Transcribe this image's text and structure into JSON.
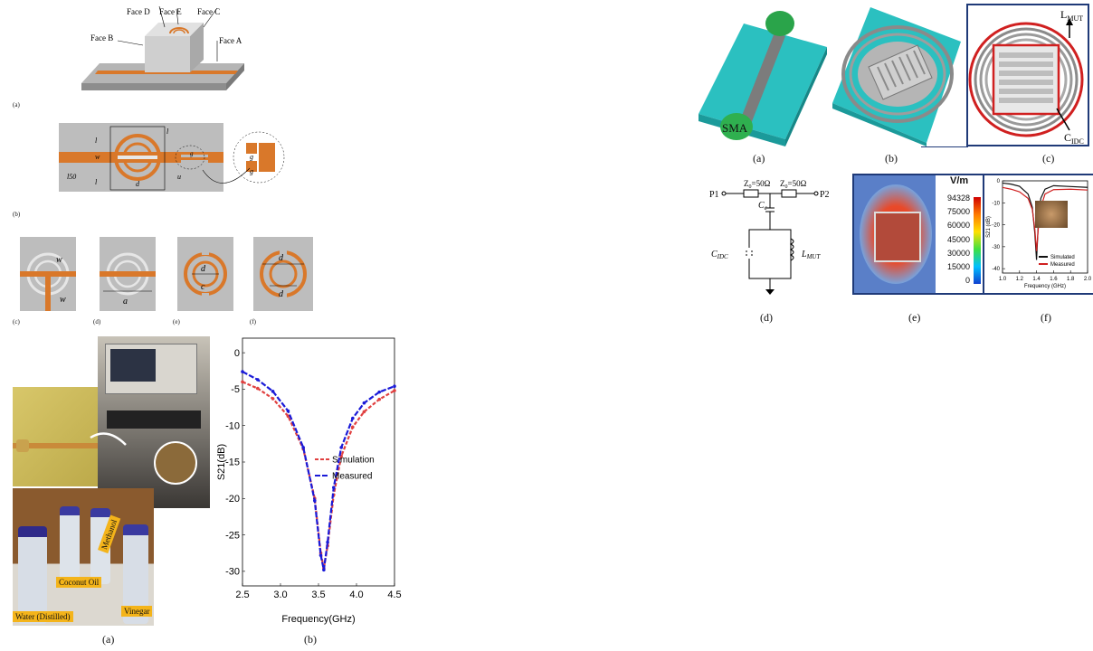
{
  "left": {
    "fig_a": {
      "caption": "(a)",
      "faces": [
        "Face D",
        "Face E",
        "Face C",
        "Face B",
        "Face A"
      ]
    },
    "fig_b": {
      "caption": "(b)",
      "labels": {
        "l2": "l",
        "w1": "w",
        "g1": "g",
        "l1": "l",
        "l50": "l50",
        "l3": "l",
        "d": "d",
        "up": "u",
        "g2": "g",
        "g3": "g"
      }
    },
    "fig_c": {
      "caption": "(c)",
      "wp": "w",
      "wa": "w"
    },
    "fig_d": {
      "caption": "(d)",
      "a": "a"
    },
    "fig_e": {
      "caption": "(e)",
      "d1": "d",
      "c": "c"
    },
    "fig_f": {
      "caption": "(f)",
      "d3": "d",
      "d2": "d"
    },
    "photo": {
      "caption": "(a)",
      "liquids": [
        "Coconut Oil",
        "Methanol",
        "Vinegar",
        "Water (Distilled)"
      ]
    },
    "chart_caption": "(b)"
  },
  "chart_data": [
    {
      "type": "line",
      "xlabel": "Frequency(GHz)",
      "ylabel": "S21(dB)",
      "xlim": [
        2.5,
        4.5
      ],
      "ylim": [
        -32,
        2
      ],
      "xticks": [
        "2.5",
        "3.0",
        "3.5",
        "4.0",
        "4.5"
      ],
      "yticks": [
        "0",
        "-5",
        "-10",
        "-15",
        "-20",
        "-25",
        "-30"
      ],
      "legend_position": "right",
      "x": [
        2.5,
        2.7,
        2.9,
        3.1,
        3.3,
        3.45,
        3.53,
        3.57,
        3.62,
        3.7,
        3.8,
        3.95,
        4.1,
        4.3,
        4.5
      ],
      "series": [
        {
          "name": "Simulation",
          "color": "#e04040",
          "values": [
            -4.0,
            -4.9,
            -6.3,
            -8.7,
            -13.2,
            -20.0,
            -27.5,
            -29.6,
            -26.5,
            -19.5,
            -14.2,
            -10.2,
            -8.1,
            -6.4,
            -5.2
          ]
        },
        {
          "name": "Measured",
          "color": "#1a1ad8",
          "values": [
            -2.6,
            -3.7,
            -5.3,
            -8.0,
            -13.0,
            -20.3,
            -27.8,
            -29.8,
            -26.0,
            -18.5,
            -13.0,
            -9.0,
            -6.9,
            -5.4,
            -4.6
          ]
        }
      ]
    },
    {
      "type": "line",
      "xlabel": "Frequency (GHz)",
      "ylabel": "S21 (dB)",
      "xlim": [
        1.0,
        2.0
      ],
      "ylim": [
        -42,
        0
      ],
      "xticks": [
        "1.0",
        "1.2",
        "1.4",
        "1.6",
        "1.8",
        "2.0"
      ],
      "yticks": [
        "0",
        "-10",
        "-20",
        "-30",
        "-40"
      ],
      "legend_position": "right",
      "x": [
        1.0,
        1.1,
        1.2,
        1.3,
        1.35,
        1.38,
        1.4,
        1.42,
        1.45,
        1.5,
        1.6,
        1.8,
        2.0
      ],
      "series": [
        {
          "name": "Simulated",
          "color": "#111111",
          "values": [
            -1.0,
            -1.5,
            -2.5,
            -6.0,
            -12.0,
            -24.0,
            -36.0,
            -20.0,
            -8.0,
            -3.8,
            -2.2,
            -2.6,
            -3.0
          ]
        },
        {
          "name": "Measured",
          "color": "#d02020",
          "values": [
            -3.0,
            -3.8,
            -5.0,
            -8.0,
            -13.0,
            -22.0,
            -32.0,
            -22.0,
            -12.0,
            -6.0,
            -4.0,
            -3.8,
            -4.2
          ]
        }
      ]
    }
  ],
  "right": {
    "captions": [
      "(a)",
      "(b)",
      "(c)",
      "(d)",
      "(e)",
      "(f)"
    ],
    "sma": "SMA",
    "lmut": "L",
    "lmut_sub": "MUT",
    "cidc": "C",
    "cidc_sub": "IDC",
    "circuit": {
      "p1": "P1",
      "p2": "P2",
      "z1": "Z",
      "z1_sub": "0",
      "z1_val": "=50Ω",
      "z2": "Z",
      "z2_sub": "0",
      "z2_val": "=50Ω",
      "cc": "C",
      "cc_sub": "c",
      "cidc": "C",
      "cidc_sub": "IDC",
      "lmut": "L",
      "lmut_sub": "MUT"
    },
    "colorbar": {
      "unit": "V/m",
      "ticks": [
        "94328",
        "75000",
        "60000",
        "45000",
        "30000",
        "15000",
        "0"
      ]
    }
  }
}
